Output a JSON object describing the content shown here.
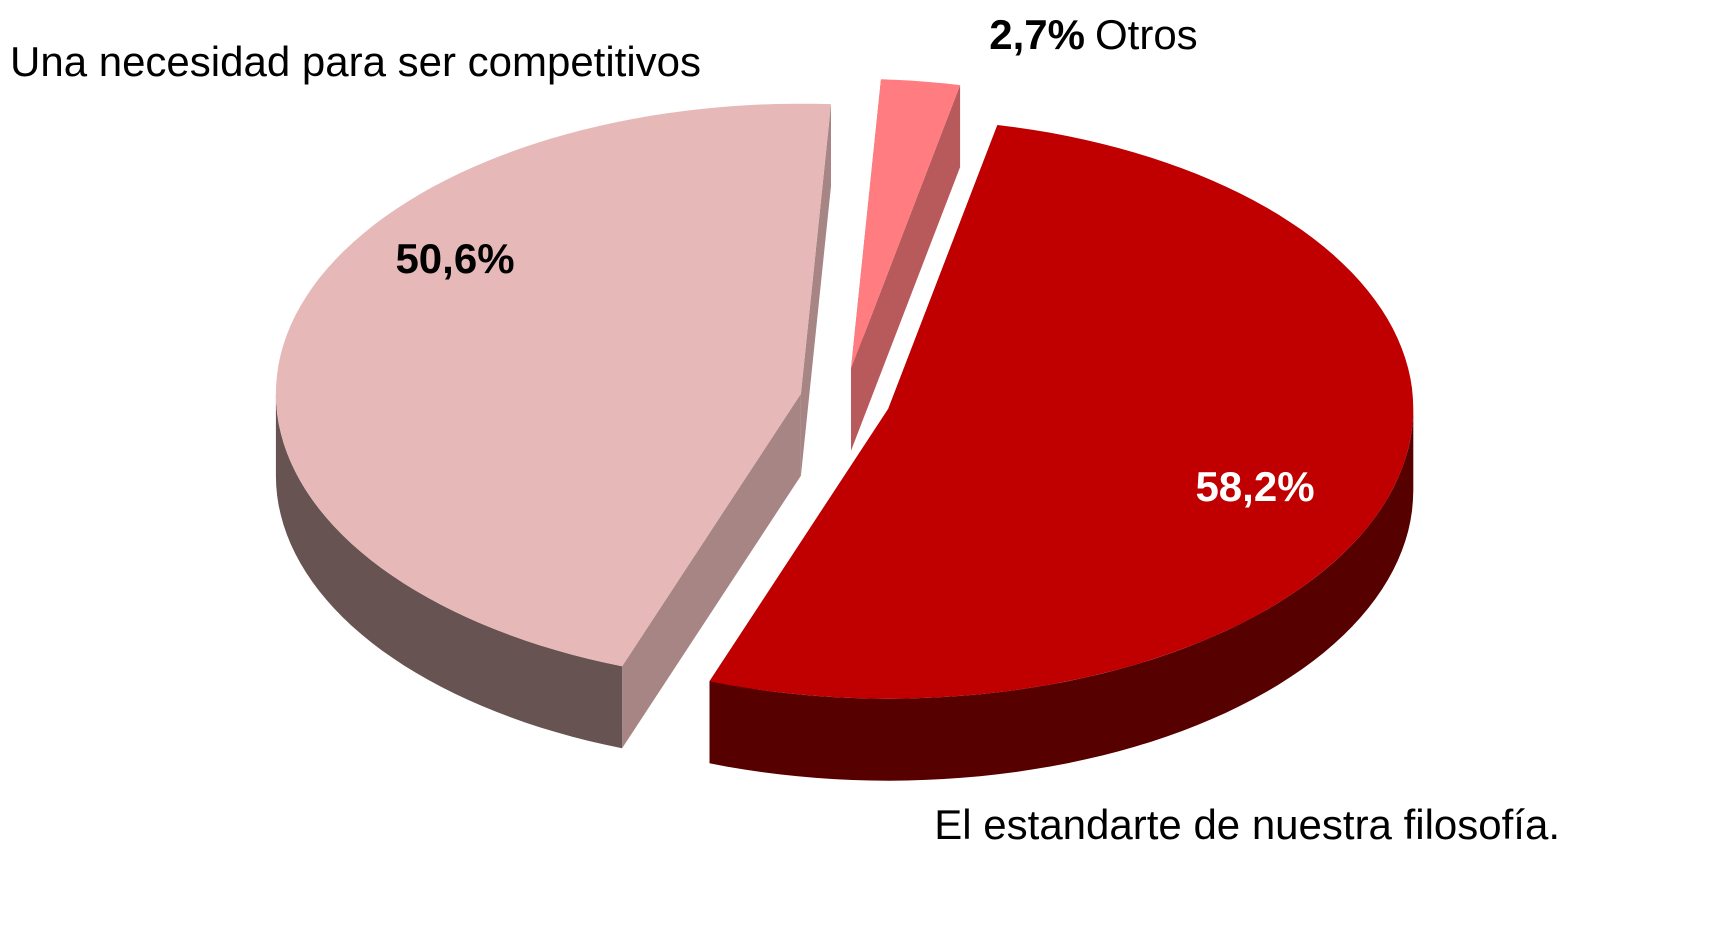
{
  "chart_data": {
    "type": "pie3d",
    "categories": [
      "El estandarte de nuestra filosofía.",
      "Una necesidad para ser competitivos",
      "Otros"
    ],
    "values": [
      58.2,
      50.6,
      2.7
    ],
    "value_labels": [
      "58,2%",
      "50,6%",
      "2,7%"
    ],
    "colors": [
      "#c00000",
      "#e6b9b8",
      "#ff7c80"
    ]
  }
}
